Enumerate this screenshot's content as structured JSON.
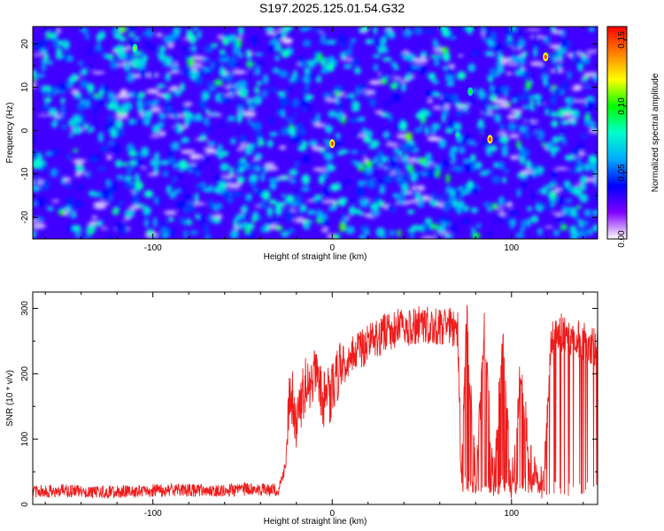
{
  "title": "S197.2025.125.01.54.G32",
  "chart_data": [
    {
      "type": "heatmap",
      "title": "S197.2025.125.01.54.G32",
      "xlabel": "Height of straight line (km)",
      "ylabel": "Frequency (Hz)",
      "xlim": [
        -167,
        148
      ],
      "ylim": [
        -25,
        24
      ],
      "x_ticks": [
        -100,
        0,
        100
      ],
      "y_ticks": [
        20,
        10,
        0,
        -10,
        -20
      ],
      "colorbar": {
        "label": "Normalized spectral amplitude",
        "range": [
          0.0,
          0.16
        ],
        "ticks": [
          0.0,
          0.05,
          0.1,
          0.15
        ],
        "tick_labels": [
          "0.00",
          "0.05",
          "0.10",
          "0.15"
        ],
        "colormap": [
          "#ffffff",
          "#8000ff",
          "#0000ff",
          "#00aaff",
          "#00ffcc",
          "#00ff00",
          "#ffff00",
          "#ff8000",
          "#ff0000"
        ]
      },
      "description_values": {
        "background_level": 0.03,
        "typical_blob_level": 0.06,
        "hotspots": [
          {
            "x": 0,
            "y": -3,
            "value": 0.15
          },
          {
            "x": 88,
            "y": -2,
            "value": 0.15
          },
          {
            "x": 119,
            "y": 17,
            "value": 0.15
          },
          {
            "x": -110,
            "y": 19,
            "value": 0.11
          },
          {
            "x": 77,
            "y": 9,
            "value": 0.1
          },
          {
            "x": 70,
            "y": -1,
            "value": 0.09
          }
        ]
      }
    },
    {
      "type": "line",
      "xlabel": "Height of straight line (km)",
      "ylabel": "SNR (10 * v/v)",
      "xlim": [
        -167,
        148
      ],
      "ylim": [
        0,
        325
      ],
      "x_ticks": [
        -100,
        0,
        100
      ],
      "y_ticks": [
        0,
        100,
        200,
        300
      ],
      "color": "#ee1c1c",
      "x": [
        -167,
        -150,
        -130,
        -110,
        -90,
        -70,
        -50,
        -30,
        -26,
        -24,
        -22,
        -20,
        -15,
        -10,
        -5,
        0,
        5,
        10,
        20,
        30,
        40,
        50,
        60,
        70,
        72,
        75,
        80,
        85,
        90,
        95,
        100,
        105,
        110,
        114,
        118,
        122,
        125,
        130,
        135,
        140,
        145,
        148
      ],
      "y": [
        20,
        21,
        19,
        20,
        22,
        21,
        23,
        22,
        60,
        150,
        165,
        130,
        180,
        195,
        160,
        170,
        210,
        225,
        245,
        265,
        272,
        275,
        272,
        270,
        30,
        290,
        30,
        280,
        30,
        250,
        30,
        200,
        80,
        30,
        30,
        250,
        265,
        262,
        255,
        250,
        240,
        245
      ],
      "envelope": {
        "noise_floor_mean": 20,
        "noise_floor_range": [
          5,
          55
        ],
        "rise_start_x": -25,
        "peak_region": [
          40,
          70
        ],
        "peak_max": 320
      }
    }
  ]
}
